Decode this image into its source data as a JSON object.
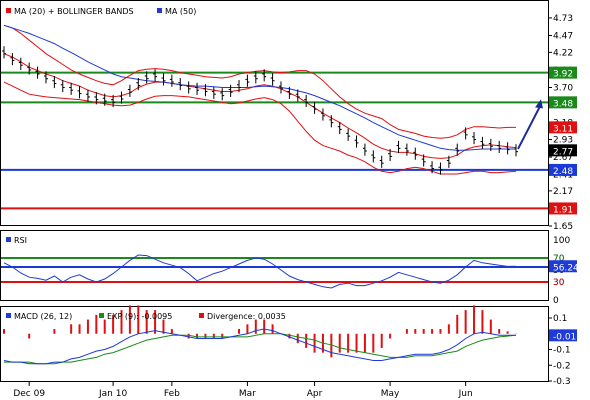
{
  "chart_data": [
    {
      "type": "line",
      "panel": "price",
      "legend": [
        {
          "label": "MA (20) + BOLLINGER BANDS",
          "color": "#e01010"
        },
        {
          "label": "MA (50)",
          "color": "#1e3ad8"
        }
      ],
      "ylim": [
        1.65,
        4.98
      ],
      "y_ticks": [
        "4.73",
        "4.47",
        "4.22",
        "3.96",
        "3.70",
        "3.44",
        "3.18",
        "2.93",
        "2.67",
        "2.41",
        "2.17",
        "1.91",
        "1.65"
      ],
      "horizontal_lines": [
        {
          "value": 3.92,
          "label": "3.92",
          "color": "#1a8a1a"
        },
        {
          "value": 3.48,
          "label": "3.48",
          "color": "#1a8a1a"
        },
        {
          "value": 2.48,
          "label": "2.48",
          "color": "#1a3ad8"
        },
        {
          "value": 1.91,
          "label": "1.91",
          "color": "#e01010"
        }
      ],
      "value_tags": [
        {
          "value": 3.11,
          "label": "3.11",
          "color": "#e01010"
        },
        {
          "value": 2.77,
          "label": "2.77",
          "color": "#000000"
        }
      ],
      "price": [
        4.22,
        4.12,
        4.05,
        3.98,
        3.92,
        3.85,
        3.78,
        3.72,
        3.68,
        3.63,
        3.58,
        3.54,
        3.52,
        3.5,
        3.55,
        3.65,
        3.75,
        3.85,
        3.88,
        3.82,
        3.8,
        3.75,
        3.7,
        3.68,
        3.66,
        3.62,
        3.6,
        3.65,
        3.72,
        3.8,
        3.85,
        3.88,
        3.82,
        3.7,
        3.62,
        3.58,
        3.5,
        3.4,
        3.3,
        3.2,
        3.1,
        3.0,
        2.9,
        2.78,
        2.68,
        2.6,
        2.7,
        2.82,
        2.78,
        2.72,
        2.62,
        2.52,
        2.5,
        2.6,
        2.78,
        3.02,
        2.95,
        2.88,
        2.85,
        2.82,
        2.8,
        2.77
      ],
      "ma20": [
        4.2,
        4.15,
        4.08,
        4.0,
        3.95,
        3.9,
        3.86,
        3.8,
        3.76,
        3.72,
        3.66,
        3.62,
        3.58,
        3.56,
        3.58,
        3.62,
        3.7,
        3.75,
        3.78,
        3.78,
        3.76,
        3.74,
        3.72,
        3.7,
        3.68,
        3.66,
        3.64,
        3.64,
        3.66,
        3.68,
        3.72,
        3.74,
        3.72,
        3.68,
        3.62,
        3.56,
        3.48,
        3.4,
        3.32,
        3.25,
        3.18,
        3.1,
        3.03,
        2.95,
        2.86,
        2.8,
        2.76,
        2.74,
        2.74,
        2.72,
        2.68,
        2.66,
        2.65,
        2.66,
        2.7,
        2.78,
        2.82,
        2.84,
        2.85,
        2.84,
        2.82,
        2.81
      ],
      "upper_band": [
        4.62,
        4.58,
        4.5,
        4.4,
        4.3,
        4.2,
        4.12,
        4.04,
        3.96,
        3.9,
        3.85,
        3.8,
        3.76,
        3.74,
        3.8,
        3.88,
        3.95,
        3.97,
        3.98,
        3.97,
        3.95,
        3.92,
        3.9,
        3.88,
        3.86,
        3.85,
        3.84,
        3.86,
        3.9,
        3.92,
        3.94,
        3.95,
        3.93,
        3.92,
        3.93,
        3.95,
        3.95,
        3.9,
        3.8,
        3.68,
        3.56,
        3.46,
        3.38,
        3.32,
        3.28,
        3.24,
        3.15,
        3.08,
        3.05,
        3.02,
        2.98,
        2.96,
        2.95,
        2.96,
        3.0,
        3.08,
        3.12,
        3.12,
        3.11,
        3.1,
        3.11,
        3.11
      ],
      "lower_band": [
        3.78,
        3.72,
        3.66,
        3.6,
        3.58,
        3.56,
        3.55,
        3.54,
        3.53,
        3.52,
        3.5,
        3.48,
        3.46,
        3.44,
        3.43,
        3.44,
        3.48,
        3.53,
        3.57,
        3.58,
        3.58,
        3.57,
        3.56,
        3.54,
        3.52,
        3.5,
        3.48,
        3.46,
        3.47,
        3.5,
        3.53,
        3.55,
        3.52,
        3.46,
        3.35,
        3.2,
        3.05,
        2.92,
        2.84,
        2.8,
        2.76,
        2.7,
        2.66,
        2.6,
        2.52,
        2.46,
        2.44,
        2.46,
        2.5,
        2.52,
        2.5,
        2.46,
        2.42,
        2.42,
        2.42,
        2.44,
        2.46,
        2.46,
        2.44,
        2.44,
        2.45,
        2.46
      ],
      "ma50": [
        4.62,
        4.58,
        4.54,
        4.5,
        4.45,
        4.4,
        4.35,
        4.28,
        4.22,
        4.15,
        4.08,
        4.02,
        3.96,
        3.9,
        3.86,
        3.84,
        3.82,
        3.8,
        3.79,
        3.78,
        3.76,
        3.74,
        3.73,
        3.72,
        3.72,
        3.71,
        3.7,
        3.7,
        3.7,
        3.7,
        3.71,
        3.72,
        3.71,
        3.7,
        3.68,
        3.65,
        3.62,
        3.58,
        3.53,
        3.48,
        3.43,
        3.37,
        3.31,
        3.25,
        3.18,
        3.12,
        3.06,
        3.0,
        2.96,
        2.92,
        2.88,
        2.84,
        2.8,
        2.78,
        2.77,
        2.77,
        2.78,
        2.79,
        2.79,
        2.79,
        2.79,
        2.79
      ],
      "forecast_arrow": {
        "from": 2.79,
        "to": 3.48
      }
    },
    {
      "type": "line",
      "panel": "rsi",
      "legend": [
        {
          "label": "RSI",
          "color": "#1e3ad8"
        }
      ],
      "ylim": [
        0,
        100
      ],
      "y_ticks": [
        "100",
        "70",
        "50",
        "30",
        "0"
      ],
      "horizontal_lines": [
        {
          "value": 70,
          "label": "70",
          "color": "#1a8a1a"
        },
        {
          "value": 55,
          "label": "",
          "color": "#1a3ad8"
        },
        {
          "value": 30,
          "label": "30",
          "color": "#e01010"
        }
      ],
      "value_tags": [
        {
          "value": 56.24,
          "label": "56.24",
          "color": "#1e3ad8"
        }
      ],
      "values": [
        62,
        55,
        45,
        38,
        36,
        33,
        40,
        30,
        38,
        42,
        35,
        30,
        35,
        44,
        55,
        66,
        75,
        74,
        68,
        62,
        58,
        54,
        44,
        32,
        38,
        44,
        48,
        54,
        60,
        66,
        70,
        68,
        60,
        50,
        40,
        34,
        30,
        26,
        22,
        20,
        26,
        28,
        24,
        24,
        28,
        32,
        38,
        46,
        42,
        38,
        34,
        30,
        28,
        33,
        42,
        55,
        66,
        62,
        60,
        58,
        56,
        56.24
      ]
    },
    {
      "type": "line",
      "panel": "macd",
      "legend": [
        {
          "label": "MACD (26, 12)",
          "color": "#1e3ad8"
        },
        {
          "label": "EXP (9): -0.0095",
          "color": "#1a8a1a"
        },
        {
          "label": "Divergence: 0.0035",
          "color": "#e01010"
        }
      ],
      "ylim": [
        -0.3,
        0.1
      ],
      "y_ticks": [
        "0.1",
        "0",
        "-0.1",
        "-0.2",
        "-0.3"
      ],
      "value_tags": [
        {
          "value": -0.01,
          "label": "-0.01",
          "color": "#1e3ad8"
        }
      ],
      "macd": [
        -0.17,
        -0.18,
        -0.18,
        -0.19,
        -0.19,
        -0.19,
        -0.18,
        -0.18,
        -0.16,
        -0.15,
        -0.13,
        -0.11,
        -0.1,
        -0.08,
        -0.05,
        -0.02,
        0.0,
        0.01,
        0.02,
        0.01,
        0.0,
        -0.01,
        -0.02,
        -0.03,
        -0.03,
        -0.03,
        -0.03,
        -0.02,
        -0.01,
        0.0,
        0.02,
        0.03,
        0.02,
        0.0,
        -0.02,
        -0.04,
        -0.06,
        -0.08,
        -0.1,
        -0.12,
        -0.13,
        -0.14,
        -0.15,
        -0.16,
        -0.17,
        -0.17,
        -0.16,
        -0.15,
        -0.14,
        -0.13,
        -0.13,
        -0.13,
        -0.12,
        -0.1,
        -0.07,
        -0.03,
        0.0,
        0.01,
        0.0,
        -0.01,
        -0.01,
        -0.01
      ],
      "signal": [
        -0.18,
        -0.18,
        -0.18,
        -0.18,
        -0.19,
        -0.19,
        -0.19,
        -0.18,
        -0.18,
        -0.17,
        -0.16,
        -0.15,
        -0.13,
        -0.12,
        -0.1,
        -0.08,
        -0.06,
        -0.04,
        -0.03,
        -0.02,
        -0.01,
        -0.01,
        -0.01,
        -0.02,
        -0.02,
        -0.02,
        -0.02,
        -0.02,
        -0.02,
        -0.02,
        -0.01,
        0.0,
        0.0,
        0.0,
        -0.01,
        -0.02,
        -0.03,
        -0.04,
        -0.06,
        -0.07,
        -0.09,
        -0.1,
        -0.11,
        -0.12,
        -0.13,
        -0.14,
        -0.15,
        -0.15,
        -0.15,
        -0.14,
        -0.14,
        -0.14,
        -0.13,
        -0.12,
        -0.11,
        -0.08,
        -0.06,
        -0.04,
        -0.03,
        -0.02,
        -0.015,
        -0.0095
      ]
    }
  ],
  "x_axis": {
    "labels": [
      "Dec 09",
      "Jan 10",
      "Feb",
      "Mar",
      "Apr",
      "May",
      "Jun"
    ]
  }
}
